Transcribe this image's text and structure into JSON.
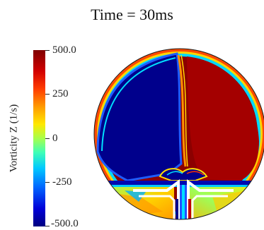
{
  "title": "Time = 30ms",
  "colorbar": {
    "label": "Vorticity Z (1/s)",
    "ticks": [
      "500.0",
      "250",
      "0",
      "-250",
      "-500.0"
    ],
    "range": [
      -500,
      500
    ],
    "colormap": "jet"
  },
  "colors": {
    "dark_red": "#7f0000",
    "red": "#e00000",
    "blue": "#00008c",
    "cyan": "#00e0ff",
    "yellow": "#ffe800",
    "background": "#ffffff"
  }
}
